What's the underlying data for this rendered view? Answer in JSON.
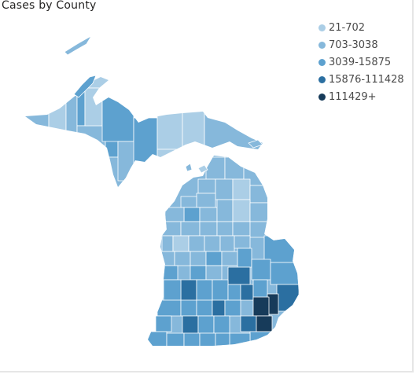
{
  "title": "Cases by County",
  "legend": [
    {
      "label": "21-702",
      "color": "#abcee6"
    },
    {
      "label": "703-3038",
      "color": "#86b8db"
    },
    {
      "label": "3039-15875",
      "color": "#5da1cf"
    },
    {
      "label": "15876-111428",
      "color": "#2b6fa1"
    },
    {
      "label": "111429+",
      "color": "#173b5a"
    }
  ]
}
